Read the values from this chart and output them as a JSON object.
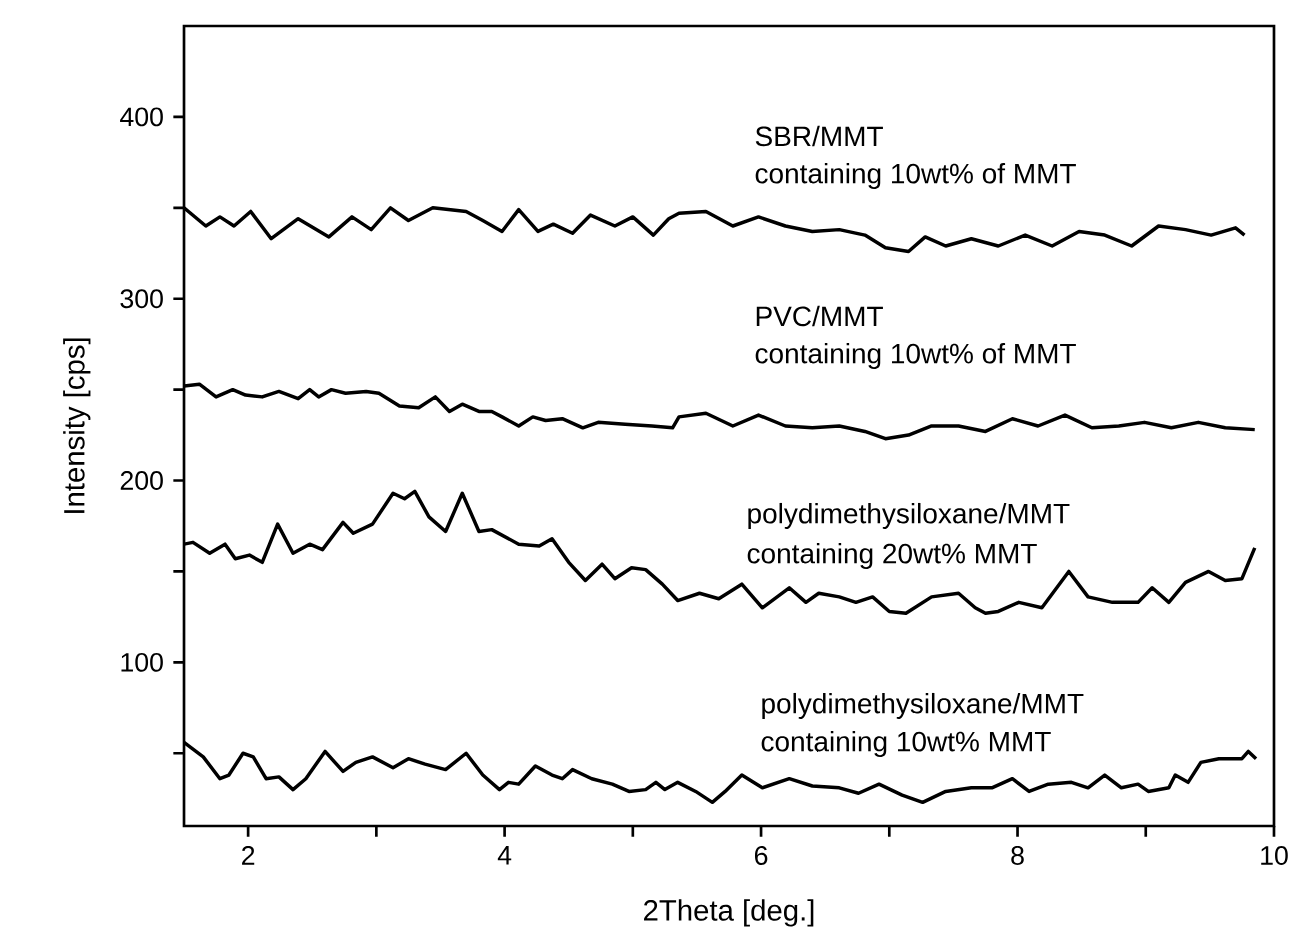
{
  "chart_data": {
    "type": "line",
    "xlabel": "2Theta [deg.]",
    "ylabel": "Intensity [cps]",
    "xlim": [
      1.5,
      10
    ],
    "ylim": [
      10,
      450
    ],
    "xticks": [
      2,
      {
        "value": 3,
        "label": null
      },
      4,
      {
        "value": 5,
        "label": null
      },
      6,
      {
        "value": 7,
        "label": null
      },
      8,
      {
        "value": 9,
        "label": null
      },
      10
    ],
    "yticks": [
      {
        "value": 50,
        "label": null
      },
      100,
      {
        "value": 150,
        "label": null
      },
      200,
      {
        "value": 250,
        "label": null
      },
      300,
      {
        "value": 350,
        "label": null
      },
      400
    ],
    "series": [
      {
        "color": "#000000",
        "x": [
          1.5,
          1.67,
          1.78,
          1.89,
          2.02,
          2.18,
          2.39,
          2.63,
          2.81,
          2.96,
          3.11,
          3.25,
          3.44,
          3.7,
          3.83,
          3.98,
          4.11,
          4.26,
          4.38,
          4.53,
          4.67,
          4.86,
          5.0,
          5.16,
          5.28,
          5.36,
          5.57,
          5.78,
          5.98,
          6.19,
          6.4,
          6.61,
          6.81,
          6.97,
          7.15,
          7.28,
          7.44,
          7.64,
          7.85,
          8.06,
          8.27,
          8.48,
          8.68,
          8.89,
          9.1,
          9.31,
          9.51,
          9.7,
          9.77
        ],
        "values": [
          350,
          340,
          345,
          340,
          348,
          333,
          344,
          334,
          345,
          338,
          350,
          343,
          350,
          348,
          343,
          337,
          349,
          337,
          341,
          336,
          346,
          340,
          345,
          335,
          344,
          347,
          348,
          340,
          345,
          340,
          337,
          338,
          335,
          328,
          326,
          334,
          329,
          333,
          329,
          335,
          329,
          337,
          335,
          329,
          340,
          338,
          335,
          339,
          335
        ]
      },
      {
        "color": "#000000",
        "x": [
          1.5,
          1.62,
          1.75,
          1.88,
          1.98,
          2.11,
          2.24,
          2.39,
          2.48,
          2.55,
          2.65,
          2.76,
          2.92,
          3.02,
          3.18,
          3.33,
          3.46,
          3.57,
          3.67,
          3.8,
          3.9,
          3.98,
          4.11,
          4.22,
          4.32,
          4.45,
          4.61,
          4.73,
          4.94,
          5.15,
          5.31,
          5.36,
          5.57,
          5.78,
          5.98,
          6.19,
          6.4,
          6.61,
          6.81,
          6.97,
          7.15,
          7.33,
          7.54,
          7.75,
          7.96,
          8.16,
          8.37,
          8.58,
          8.79,
          8.99,
          9.2,
          9.41,
          9.62,
          9.85
        ],
        "values": [
          252,
          253,
          246,
          250,
          247,
          246,
          249,
          245,
          250,
          246,
          250,
          248,
          249,
          248,
          241,
          240,
          246,
          238,
          242,
          238,
          238,
          235,
          230,
          235,
          233,
          234,
          229,
          232,
          231,
          230,
          229,
          235,
          237,
          230,
          236,
          230,
          229,
          230,
          227,
          223,
          225,
          230,
          230,
          227,
          234,
          230,
          236,
          229,
          230,
          232,
          229,
          232,
          229,
          228
        ]
      },
      {
        "color": "#000000",
        "x": [
          1.5,
          1.57,
          1.7,
          1.82,
          1.9,
          2.01,
          2.11,
          2.23,
          2.35,
          2.48,
          2.58,
          2.74,
          2.82,
          2.97,
          3.13,
          3.22,
          3.3,
          3.41,
          3.54,
          3.67,
          3.8,
          3.9,
          4.11,
          4.27,
          4.37,
          4.5,
          4.63,
          4.76,
          4.86,
          4.99,
          5.1,
          5.23,
          5.35,
          5.52,
          5.67,
          5.85,
          6.01,
          6.22,
          6.35,
          6.45,
          6.61,
          6.74,
          6.87,
          7.0,
          7.13,
          7.33,
          7.54,
          7.67,
          7.75,
          7.85,
          8.01,
          8.19,
          8.4,
          8.55,
          8.74,
          8.94,
          9.05,
          9.18,
          9.31,
          9.49,
          9.62,
          9.75,
          9.85
        ],
        "values": [
          165,
          166,
          160,
          165,
          157,
          159,
          155,
          176,
          160,
          165,
          162,
          177,
          171,
          176,
          193,
          190,
          194,
          180,
          172,
          193,
          172,
          173,
          165,
          164,
          168,
          155,
          145,
          154,
          146,
          152,
          151,
          143,
          134,
          138,
          135,
          143,
          130,
          141,
          133,
          138,
          136,
          133,
          136,
          128,
          127,
          136,
          138,
          130,
          127,
          128,
          133,
          130,
          150,
          136,
          133,
          133,
          141,
          133,
          144,
          150,
          145,
          146,
          163
        ]
      },
      {
        "color": "#000000",
        "x": [
          1.5,
          1.65,
          1.78,
          1.85,
          1.96,
          2.04,
          2.14,
          2.24,
          2.35,
          2.45,
          2.6,
          2.74,
          2.84,
          2.97,
          3.13,
          3.25,
          3.38,
          3.54,
          3.7,
          3.83,
          3.96,
          4.03,
          4.11,
          4.24,
          4.37,
          4.45,
          4.53,
          4.68,
          4.84,
          4.97,
          5.1,
          5.18,
          5.25,
          5.35,
          5.49,
          5.62,
          5.72,
          5.85,
          6.01,
          6.22,
          6.4,
          6.61,
          6.76,
          6.92,
          7.1,
          7.26,
          7.44,
          7.64,
          7.8,
          7.96,
          8.09,
          8.24,
          8.42,
          8.55,
          8.68,
          8.81,
          8.94,
          9.02,
          9.18,
          9.23,
          9.33,
          9.43,
          9.57,
          9.75,
          9.8,
          9.86
        ],
        "values": [
          56,
          48,
          36,
          38,
          50,
          48,
          36,
          37,
          30,
          36,
          51,
          40,
          45,
          48,
          42,
          47,
          44,
          41,
          50,
          38,
          30,
          34,
          33,
          43,
          38,
          36,
          41,
          36,
          33,
          29,
          30,
          34,
          30,
          34,
          29,
          23,
          29,
          38,
          31,
          36,
          32,
          31,
          28,
          33,
          27,
          23,
          29,
          31,
          31,
          36,
          29,
          33,
          34,
          31,
          38,
          31,
          33,
          29,
          31,
          38,
          34,
          45,
          47,
          47,
          51,
          47
        ]
      }
    ],
    "annotations": [
      "SBR/MMT",
      "containing 10wt% of MMT",
      "PVC/MMT",
      "containing 10wt% of MMT",
      "polydimethysiloxane/MMT",
      "containing 20wt% MMT",
      "polydimethysiloxane/MMT",
      "containing 10wt% MMT"
    ]
  }
}
